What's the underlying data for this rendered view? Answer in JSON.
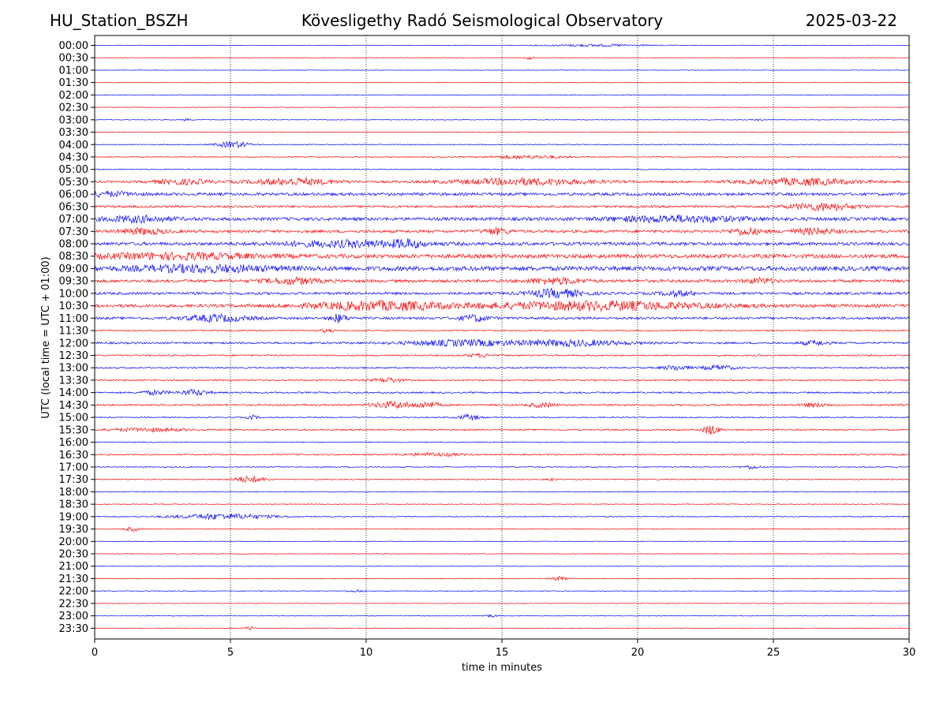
{
  "header": {
    "station": "HU_Station_BSZH",
    "title": "Kövesligethy Radó Seismological Observatory",
    "date": "2025-03-22"
  },
  "chart_data": {
    "type": "line",
    "title": "Kövesligethy Radó Seismological Observatory",
    "xlabel": "time in minutes",
    "ylabel": "UTC (local time = UTC + 01:00)",
    "xlim": [
      0,
      30
    ],
    "x_ticks": [
      0,
      5,
      10,
      15,
      20,
      25,
      30
    ],
    "grid": "vertical dotted lines at 5-minute intervals",
    "colors": {
      "even_rows": "#0000ff",
      "odd_rows": "#ff0000",
      "grid": "#000000"
    },
    "rows": [
      {
        "label": "00:00",
        "noise": 0.35,
        "events": [
          {
            "t": 18.5,
            "amp": 1.4,
            "w": 1.8
          }
        ]
      },
      {
        "label": "00:30",
        "noise": 0.35,
        "events": [
          {
            "t": 16.0,
            "amp": 1.8,
            "w": 0.15
          }
        ]
      },
      {
        "label": "01:00",
        "noise": 0.35,
        "events": []
      },
      {
        "label": "01:30",
        "noise": 0.35,
        "events": []
      },
      {
        "label": "02:00",
        "noise": 0.4,
        "events": []
      },
      {
        "label": "02:30",
        "noise": 0.35,
        "events": []
      },
      {
        "label": "03:00",
        "noise": 0.4,
        "events": [
          {
            "t": 3.4,
            "amp": 1.2,
            "w": 0.2
          },
          {
            "t": 24.5,
            "amp": 1.0,
            "w": 0.2
          }
        ]
      },
      {
        "label": "03:30",
        "noise": 0.45,
        "events": []
      },
      {
        "label": "04:00",
        "noise": 0.5,
        "events": [
          {
            "t": 5.1,
            "amp": 4.0,
            "w": 0.6
          }
        ]
      },
      {
        "label": "04:30",
        "noise": 0.55,
        "events": [
          {
            "t": 16.0,
            "amp": 2.0,
            "w": 1.5
          }
        ]
      },
      {
        "label": "05:00",
        "noise": 0.6,
        "events": []
      },
      {
        "label": "05:30",
        "noise": 1.3,
        "events": [
          {
            "t": 3.2,
            "amp": 3.0,
            "w": 1.0
          },
          {
            "t": 7.3,
            "amp": 4.0,
            "w": 1.5
          },
          {
            "t": 15.8,
            "amp": 4.0,
            "w": 2.5
          },
          {
            "t": 26.0,
            "amp": 4.0,
            "w": 2.0
          }
        ]
      },
      {
        "label": "06:00",
        "noise": 1.8,
        "events": [
          {
            "t": 0.5,
            "amp": 2.5,
            "w": 1.0
          }
        ]
      },
      {
        "label": "06:30",
        "noise": 1.4,
        "events": [
          {
            "t": 26.8,
            "amp": 4.5,
            "w": 1.2
          }
        ]
      },
      {
        "label": "07:00",
        "noise": 2.0,
        "events": [
          {
            "t": 1.6,
            "amp": 3.5,
            "w": 1.2
          },
          {
            "t": 21.5,
            "amp": 3.5,
            "w": 2.5
          }
        ]
      },
      {
        "label": "07:30",
        "noise": 1.7,
        "events": [
          {
            "t": 1.8,
            "amp": 3.5,
            "w": 0.8
          },
          {
            "t": 14.8,
            "amp": 3.5,
            "w": 0.5
          },
          {
            "t": 24.0,
            "amp": 4.0,
            "w": 0.6
          },
          {
            "t": 26.5,
            "amp": 3.5,
            "w": 0.8
          }
        ]
      },
      {
        "label": "08:00",
        "noise": 2.0,
        "events": [
          {
            "t": 9.5,
            "amp": 3.5,
            "w": 2.5
          },
          {
            "t": 11.5,
            "amp": 3.5,
            "w": 0.5
          }
        ]
      },
      {
        "label": "08:30",
        "noise": 2.5,
        "events": [
          {
            "t": 3.0,
            "amp": 3.0,
            "w": 3.0
          }
        ]
      },
      {
        "label": "09:00",
        "noise": 2.8,
        "events": [
          {
            "t": 4.0,
            "amp": 3.5,
            "w": 2.5
          }
        ]
      },
      {
        "label": "09:30",
        "noise": 1.8,
        "events": [
          {
            "t": 7.3,
            "amp": 3.5,
            "w": 1.0
          },
          {
            "t": 17.0,
            "amp": 3.5,
            "w": 1.0
          },
          {
            "t": 24.5,
            "amp": 3.0,
            "w": 0.5
          }
        ]
      },
      {
        "label": "10:00",
        "noise": 1.6,
        "events": [
          {
            "t": 17.0,
            "amp": 5.0,
            "w": 1.0
          },
          {
            "t": 21.5,
            "amp": 3.0,
            "w": 0.6
          }
        ]
      },
      {
        "label": "10:30",
        "noise": 2.0,
        "events": [
          {
            "t": 10.5,
            "amp": 5.0,
            "w": 2.5
          },
          {
            "t": 18.5,
            "amp": 5.0,
            "w": 4.0
          }
        ]
      },
      {
        "label": "11:00",
        "noise": 1.5,
        "events": [
          {
            "t": 4.5,
            "amp": 4.0,
            "w": 1.2
          },
          {
            "t": 9.0,
            "amp": 5.0,
            "w": 0.3
          },
          {
            "t": 14.0,
            "amp": 4.0,
            "w": 0.5
          }
        ]
      },
      {
        "label": "11:30",
        "noise": 0.8,
        "events": [
          {
            "t": 8.5,
            "amp": 1.8,
            "w": 0.3
          }
        ]
      },
      {
        "label": "12:00",
        "noise": 1.2,
        "events": [
          {
            "t": 13.5,
            "amp": 3.5,
            "w": 2.0
          },
          {
            "t": 17.5,
            "amp": 3.5,
            "w": 2.0
          },
          {
            "t": 26.5,
            "amp": 2.5,
            "w": 0.5
          }
        ]
      },
      {
        "label": "12:30",
        "noise": 0.9,
        "events": [
          {
            "t": 14.2,
            "amp": 2.0,
            "w": 0.5
          }
        ]
      },
      {
        "label": "13:00",
        "noise": 0.9,
        "events": [
          {
            "t": 21.4,
            "amp": 3.0,
            "w": 0.5
          },
          {
            "t": 23.0,
            "amp": 3.0,
            "w": 0.6
          }
        ]
      },
      {
        "label": "13:30",
        "noise": 0.9,
        "events": [
          {
            "t": 10.8,
            "amp": 3.0,
            "w": 0.5
          }
        ]
      },
      {
        "label": "14:00",
        "noise": 1.0,
        "events": [
          {
            "t": 2.2,
            "amp": 2.5,
            "w": 0.5
          },
          {
            "t": 3.7,
            "amp": 3.5,
            "w": 0.5
          }
        ]
      },
      {
        "label": "14:30",
        "noise": 1.1,
        "events": [
          {
            "t": 11.0,
            "amp": 4.0,
            "w": 0.8
          },
          {
            "t": 12.3,
            "amp": 3.5,
            "w": 0.4
          },
          {
            "t": 16.5,
            "amp": 2.5,
            "w": 0.5
          },
          {
            "t": 26.5,
            "amp": 2.0,
            "w": 0.5
          }
        ]
      },
      {
        "label": "15:00",
        "noise": 0.7,
        "events": [
          {
            "t": 5.8,
            "amp": 2.5,
            "w": 0.2
          },
          {
            "t": 13.8,
            "amp": 3.5,
            "w": 0.4
          }
        ]
      },
      {
        "label": "15:30",
        "noise": 0.9,
        "events": [
          {
            "t": 2.0,
            "amp": 2.0,
            "w": 1.5
          },
          {
            "t": 22.7,
            "amp": 6.0,
            "w": 0.3
          }
        ]
      },
      {
        "label": "16:00",
        "noise": 0.6,
        "events": []
      },
      {
        "label": "16:30",
        "noise": 0.8,
        "events": [
          {
            "t": 12.5,
            "amp": 2.0,
            "w": 1.0
          }
        ]
      },
      {
        "label": "17:00",
        "noise": 0.6,
        "events": [
          {
            "t": 24.2,
            "amp": 2.5,
            "w": 0.3
          }
        ]
      },
      {
        "label": "17:30",
        "noise": 0.6,
        "events": [
          {
            "t": 5.7,
            "amp": 4.0,
            "w": 0.6
          },
          {
            "t": 16.8,
            "amp": 2.0,
            "w": 0.2
          }
        ]
      },
      {
        "label": "18:00",
        "noise": 0.5,
        "events": []
      },
      {
        "label": "18:30",
        "noise": 0.5,
        "events": []
      },
      {
        "label": "19:00",
        "noise": 0.6,
        "events": [
          {
            "t": 4.7,
            "amp": 3.5,
            "w": 1.8
          }
        ]
      },
      {
        "label": "19:30",
        "noise": 0.5,
        "events": [
          {
            "t": 1.4,
            "amp": 2.5,
            "w": 0.3
          }
        ]
      },
      {
        "label": "20:00",
        "noise": 0.4,
        "events": []
      },
      {
        "label": "20:30",
        "noise": 0.4,
        "events": []
      },
      {
        "label": "21:00",
        "noise": 0.4,
        "events": []
      },
      {
        "label": "21:30",
        "noise": 0.4,
        "events": [
          {
            "t": 17.1,
            "amp": 2.5,
            "w": 0.3
          }
        ]
      },
      {
        "label": "22:00",
        "noise": 0.4,
        "events": [
          {
            "t": 9.6,
            "amp": 1.5,
            "w": 0.3
          }
        ]
      },
      {
        "label": "22:30",
        "noise": 0.35,
        "events": []
      },
      {
        "label": "23:00",
        "noise": 0.4,
        "events": [
          {
            "t": 14.6,
            "amp": 1.5,
            "w": 0.3
          }
        ]
      },
      {
        "label": "23:30",
        "noise": 0.4,
        "events": [
          {
            "t": 5.7,
            "amp": 2.5,
            "w": 0.15
          }
        ]
      }
    ]
  }
}
